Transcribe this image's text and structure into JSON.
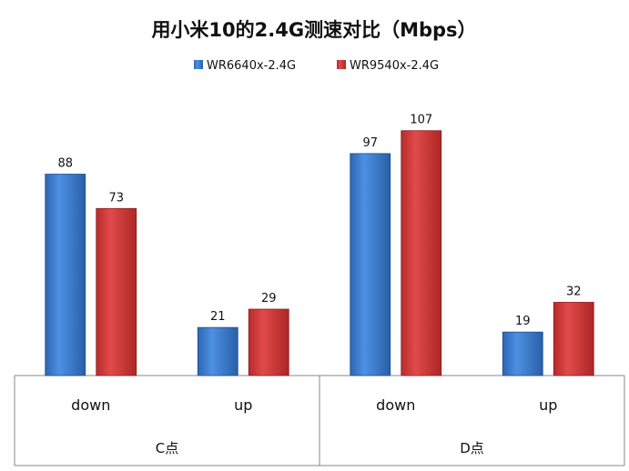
{
  "chart_data": {
    "type": "bar",
    "title": "用小米10的2.4G测速对比（Mbps）",
    "groups": [
      {
        "label": "C点",
        "categories": [
          "down",
          "up"
        ]
      },
      {
        "label": "D点",
        "categories": [
          "down",
          "up"
        ]
      }
    ],
    "series": [
      {
        "name": "WR6640x-2.4G",
        "color": "#3d7fd6",
        "values": [
          88,
          21,
          97,
          19
        ]
      },
      {
        "name": "WR9540x-2.4G",
        "color": "#d83b3b",
        "values": [
          73,
          29,
          107,
          32
        ]
      }
    ],
    "ylim": [
      0,
      120
    ],
    "legend_position": "top"
  }
}
